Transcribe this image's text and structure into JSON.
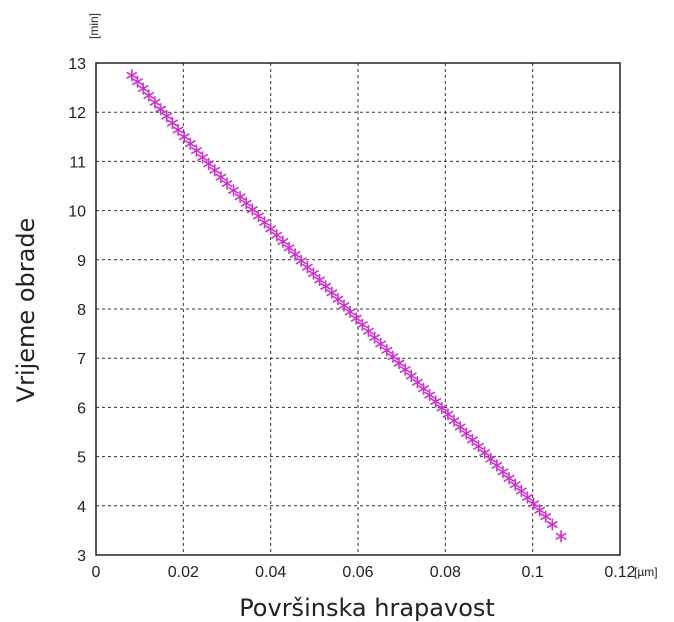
{
  "chart_data": {
    "type": "scatter",
    "title": "",
    "xlabel": "Površinska hrapavost",
    "ylabel": "Vrijeme obrade",
    "x_unit": "[µm]",
    "y_unit": "[min]",
    "xlim": [
      0,
      0.12
    ],
    "ylim": [
      3,
      13
    ],
    "x_ticks": [
      0,
      0.02,
      0.04,
      0.06,
      0.08,
      0.1,
      0.12
    ],
    "x_tick_labels": [
      "0",
      "0.02",
      "0.04",
      "0.06",
      "0.08",
      "0.1",
      "0.12"
    ],
    "y_ticks": [
      3,
      4,
      5,
      6,
      7,
      8,
      9,
      10,
      11,
      12,
      13
    ],
    "y_tick_labels": [
      "3",
      "4",
      "5",
      "6",
      "7",
      "8",
      "9",
      "10",
      "11",
      "12",
      "13"
    ],
    "grid": true,
    "grid_style": "dashed",
    "marker": "star",
    "marker_color": "#cc33cc",
    "series": [
      {
        "x": [
          0.0082,
          0.0095,
          0.0108,
          0.0121,
          0.0135,
          0.0148,
          0.0162,
          0.0175,
          0.0188,
          0.0202,
          0.0216,
          0.023,
          0.0244,
          0.0258,
          0.0272,
          0.0286,
          0.03,
          0.0315,
          0.033,
          0.0344,
          0.0358,
          0.0372,
          0.0386,
          0.04,
          0.0414,
          0.0428,
          0.0442,
          0.0456,
          0.047,
          0.0484,
          0.0498,
          0.0512,
          0.0526,
          0.054,
          0.0554,
          0.0568,
          0.0582,
          0.0596,
          0.061,
          0.0624,
          0.0638,
          0.0652,
          0.0666,
          0.068,
          0.0694,
          0.0708,
          0.0722,
          0.0736,
          0.075,
          0.0764,
          0.0778,
          0.0792,
          0.0806,
          0.082,
          0.0834,
          0.0848,
          0.0862,
          0.0876,
          0.089,
          0.0904,
          0.0918,
          0.0932,
          0.0946,
          0.096,
          0.0974,
          0.0988,
          0.1002,
          0.1016,
          0.103,
          0.1045,
          0.1065
        ],
        "y": [
          12.75,
          12.62,
          12.48,
          12.34,
          12.2,
          12.06,
          11.92,
          11.78,
          11.64,
          11.5,
          11.36,
          11.22,
          11.08,
          10.95,
          10.82,
          10.68,
          10.55,
          10.41,
          10.28,
          10.15,
          10.02,
          9.89,
          9.76,
          9.63,
          9.5,
          9.37,
          9.24,
          9.11,
          8.98,
          8.85,
          8.72,
          8.59,
          8.46,
          8.33,
          8.2,
          8.07,
          7.94,
          7.81,
          7.68,
          7.55,
          7.42,
          7.29,
          7.16,
          7.03,
          6.9,
          6.77,
          6.64,
          6.51,
          6.38,
          6.25,
          6.12,
          5.99,
          5.86,
          5.73,
          5.6,
          5.47,
          5.34,
          5.21,
          5.08,
          4.95,
          4.82,
          4.69,
          4.56,
          4.43,
          4.3,
          4.17,
          4.04,
          3.91,
          3.78,
          3.62,
          3.38
        ]
      }
    ]
  }
}
